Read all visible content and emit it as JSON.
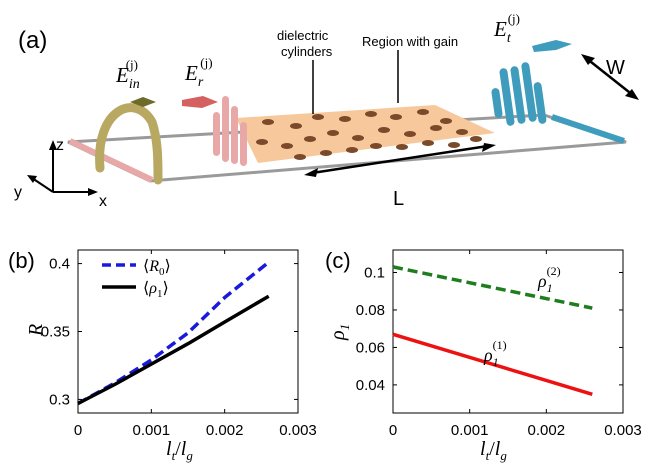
{
  "panel_a": {
    "tag": "(a)",
    "label_dielectric_line1": "dielectric",
    "label_dielectric_line2": "cylinders",
    "label_gain": "Region with gain",
    "label_length": "L",
    "label_width": "W",
    "axis_z": "z",
    "axis_y": "y",
    "axis_x": "x",
    "field_in_base": "E",
    "field_in_sub": "in",
    "field_in_sup": "(j)",
    "field_r_base": "E",
    "field_r_sub": "r",
    "field_r_sup": "(j)",
    "field_t_base": "E",
    "field_t_sub": "t",
    "field_t_sup": "(j)"
  },
  "colors": {
    "dashed_blue": "#1a1adc",
    "solid_black": "#000000",
    "dashed_green": "#1e7d1e",
    "solid_red": "#ee1111",
    "gain_region": "#f7c89b",
    "cylinders": "#7a4a2a",
    "incident_wave": "#b8a862",
    "reflected_wave": "#e9a8a8",
    "transmitted_wave": "#3f9cbc",
    "waveguide_edge": "#9a9a9a"
  },
  "chart_data": [
    {
      "panel": "(b)",
      "type": "line",
      "xlabel_base": "l",
      "xlabel_sub1": "t",
      "xlabel_sep": "/",
      "xlabel_sub2": "g",
      "ylabel": "R",
      "xlim": [
        0,
        0.003
      ],
      "ylim": [
        0.29,
        0.41
      ],
      "xticks": [
        "0",
        "0.001",
        "0.002",
        "0.003"
      ],
      "xtick_values": [
        0,
        0.001,
        0.002,
        0.003
      ],
      "yticks": [
        "0.3",
        "0.35",
        "0.4"
      ],
      "ytick_values": [
        0.3,
        0.35,
        0.4
      ],
      "legend_position": "top-left",
      "series": [
        {
          "name": "⟨R₀⟩",
          "legend_base": "R",
          "legend_sub": "0",
          "style": "dashed",
          "color_key": "dashed_blue",
          "x": [
            0,
            0.0005,
            0.001,
            0.0015,
            0.002,
            0.0026
          ],
          "y": [
            0.297,
            0.312,
            0.329,
            0.349,
            0.375,
            0.401
          ]
        },
        {
          "name": "⟨ρ₁⟩",
          "legend_base": "ρ",
          "legend_sub": "1",
          "style": "solid",
          "color_key": "solid_black",
          "x": [
            0,
            0.0005,
            0.001,
            0.0015,
            0.002,
            0.0026
          ],
          "y": [
            0.297,
            0.311,
            0.326,
            0.341,
            0.357,
            0.376
          ]
        }
      ]
    },
    {
      "panel": "(c)",
      "type": "line",
      "xlabel_base": "l",
      "xlabel_sub1": "t",
      "xlabel_sep": "/",
      "xlabel_sub2": "g",
      "ylabel_base": "ρ",
      "ylabel_sub": "1",
      "xlim": [
        0,
        0.003
      ],
      "ylim": [
        0.025,
        0.112
      ],
      "xticks": [
        "0",
        "0.001",
        "0.002",
        "0.003"
      ],
      "xtick_values": [
        0,
        0.001,
        0.002,
        0.003
      ],
      "yticks": [
        "0.04",
        "0.06",
        "0.08",
        "0.1"
      ],
      "ytick_values": [
        0.04,
        0.06,
        0.08,
        0.1
      ],
      "series": [
        {
          "name": "ρ1(2)",
          "label_base": "ρ",
          "label_sub": "1",
          "label_sup": "(2)",
          "style": "dashed",
          "color_key": "dashed_green",
          "x": [
            0,
            0.0026
          ],
          "y": [
            0.103,
            0.081
          ]
        },
        {
          "name": "ρ1(1)",
          "label_base": "ρ",
          "label_sub": "1",
          "label_sup": "(1)",
          "style": "solid",
          "color_key": "solid_red",
          "x": [
            0,
            0.0026
          ],
          "y": [
            0.067,
            0.035
          ]
        }
      ]
    }
  ]
}
